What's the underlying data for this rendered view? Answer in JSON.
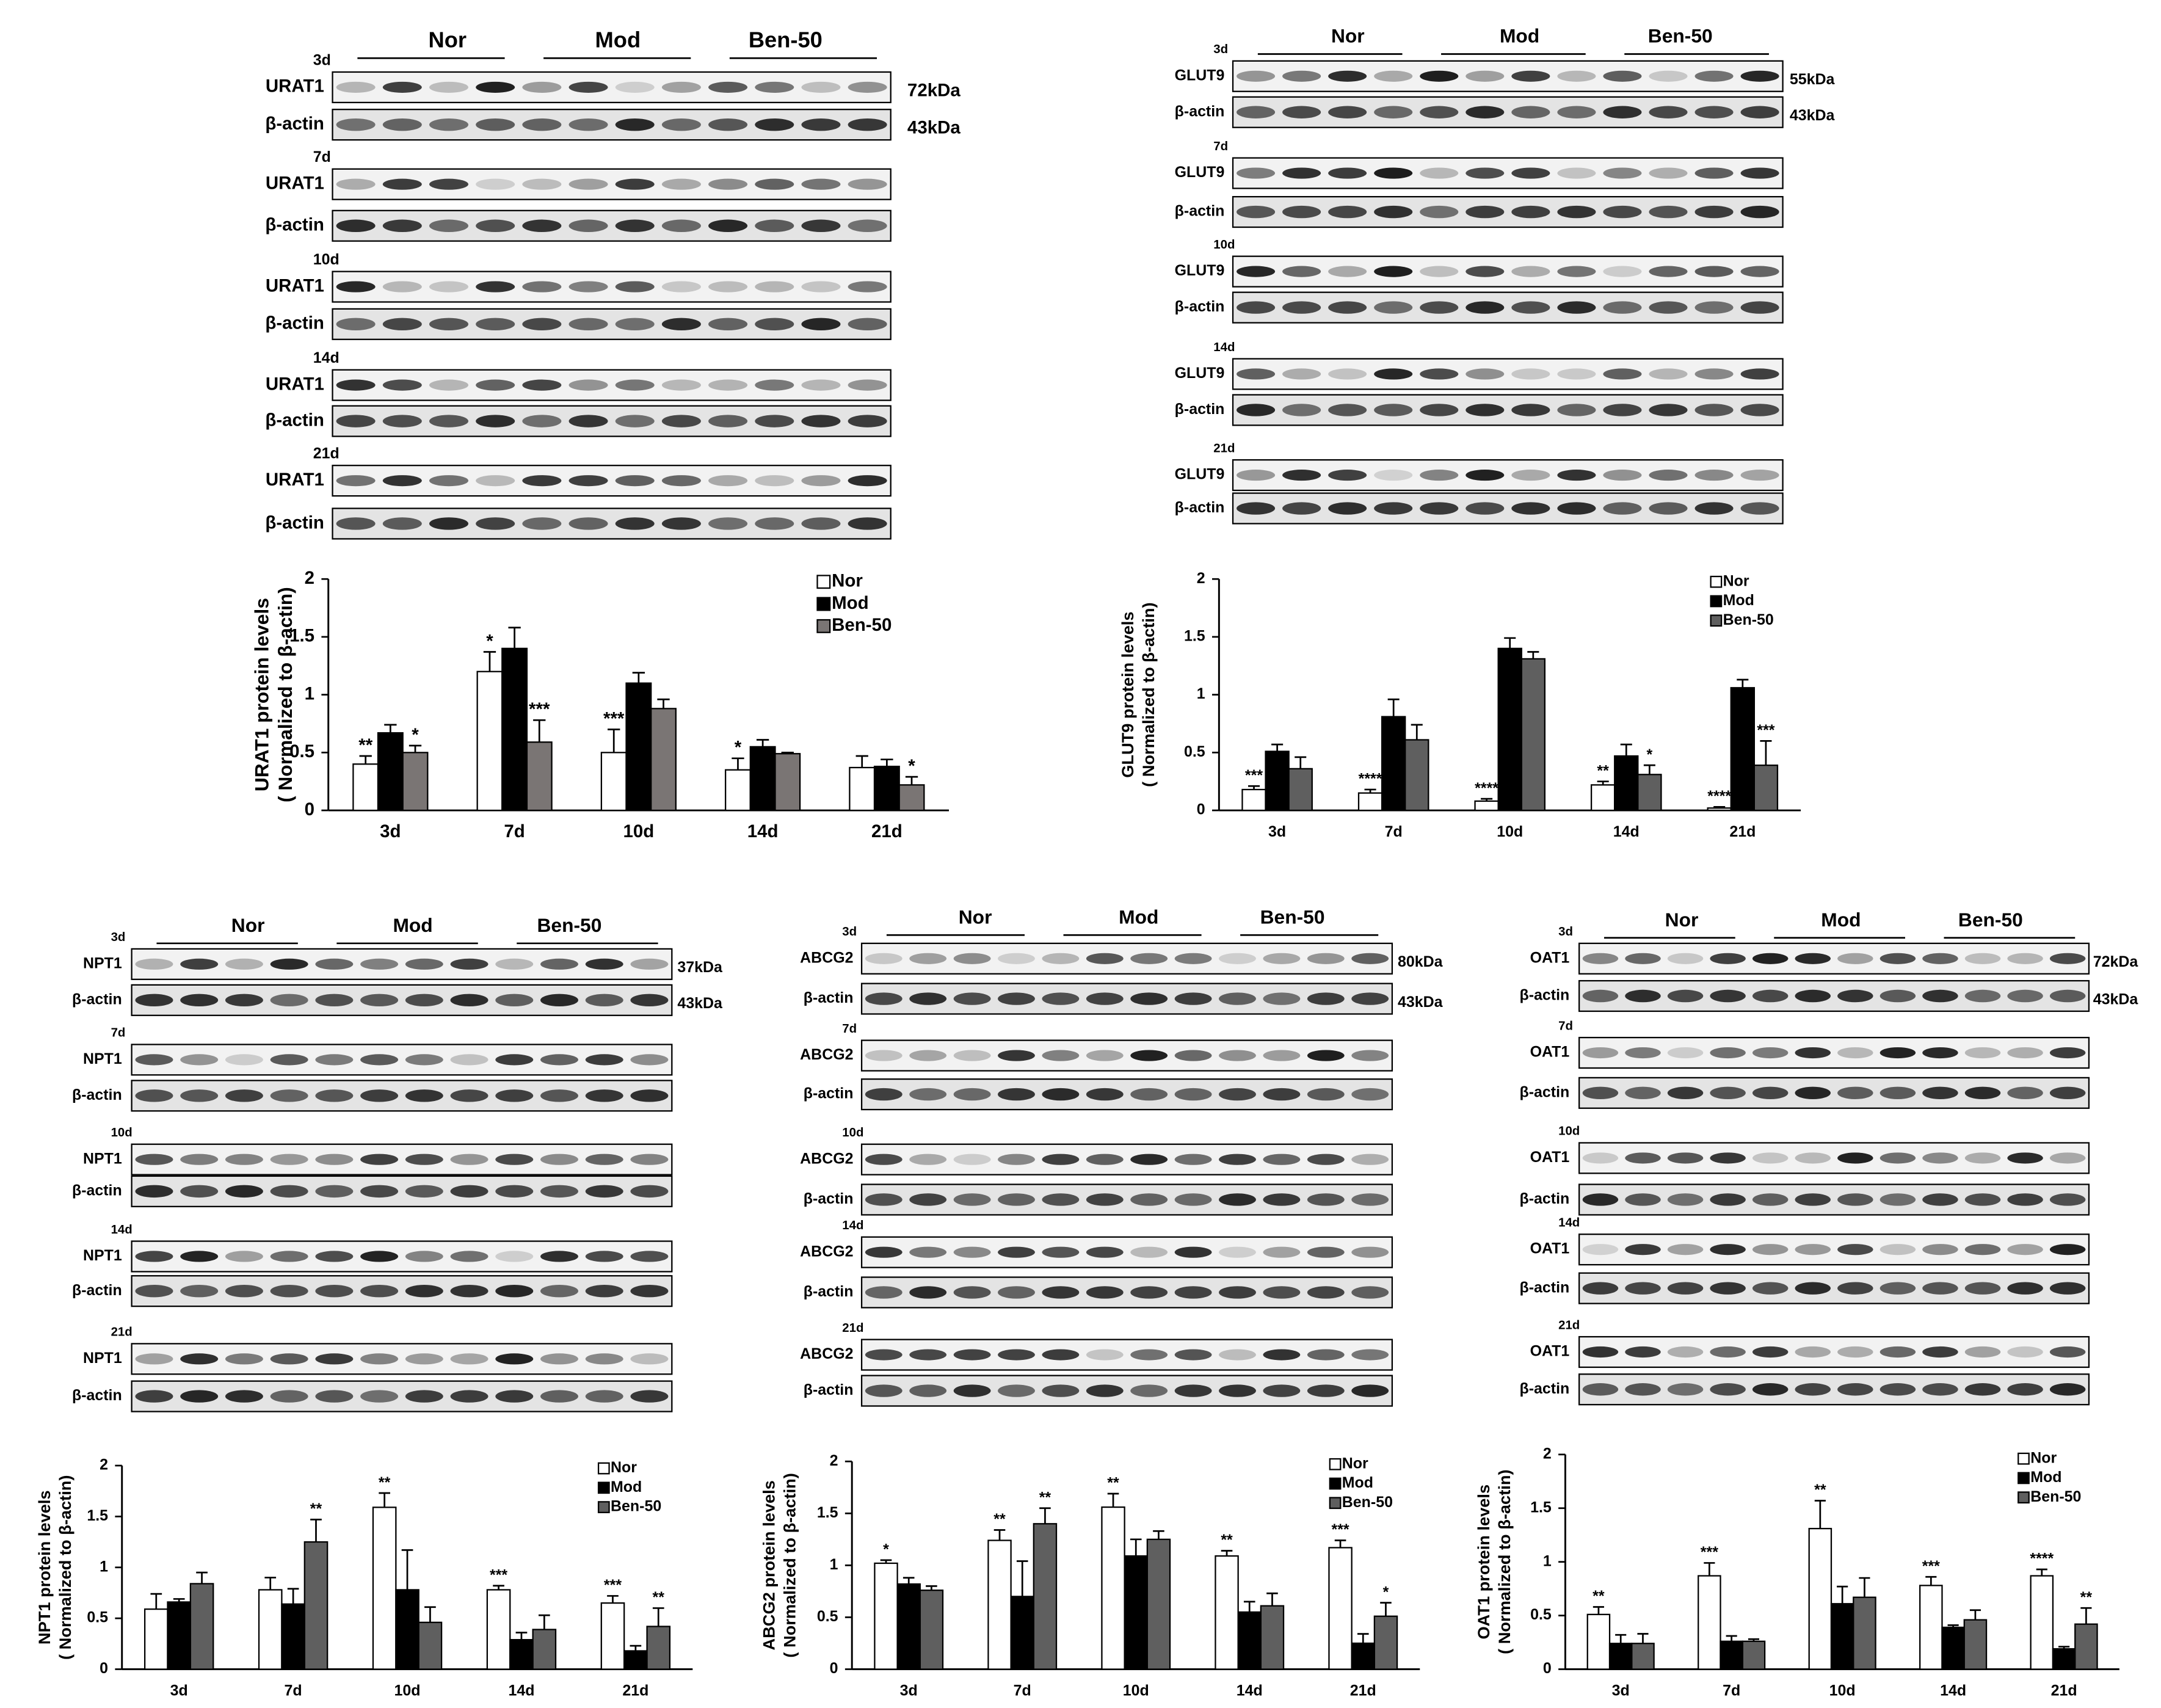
{
  "chart_data": [
    {
      "type": "bar",
      "ylabel": "URAT1 protein levels",
      "ylabel_note": "( Normalized to β-actin)",
      "categories": [
        "3d",
        "7d",
        "10d",
        "14d",
        "21d"
      ],
      "ylim": [
        0,
        2
      ],
      "yticks": [
        0,
        0.5,
        1,
        1.5,
        2
      ],
      "legend": "upper right",
      "series": [
        {
          "name": "Nor",
          "color": "#ffffff",
          "values": [
            0.4,
            1.2,
            0.5,
            0.35,
            0.37
          ],
          "errors": [
            0.07,
            0.17,
            0.2,
            0.1,
            0.1
          ],
          "significance": [
            "**",
            "*",
            "***",
            "*",
            null
          ]
        },
        {
          "name": "Mod",
          "color": "#000000",
          "values": [
            0.67,
            1.4,
            1.1,
            0.55,
            0.38
          ],
          "errors": [
            0.07,
            0.18,
            0.09,
            0.06,
            0.06
          ],
          "significance": [
            null,
            null,
            null,
            null,
            null
          ]
        },
        {
          "name": "Ben-50",
          "color": "#7a7574",
          "values": [
            0.5,
            0.59,
            0.88,
            0.49,
            0.22
          ],
          "errors": [
            0.06,
            0.19,
            0.08,
            0.01,
            0.07
          ],
          "significance": [
            "*",
            "***",
            null,
            null,
            "*"
          ]
        }
      ]
    },
    {
      "type": "bar",
      "ylabel": "GLUT9 protein levels",
      "ylabel_note": "( Normalized to β-actin)",
      "categories": [
        "3d",
        "7d",
        "10d",
        "14d",
        "21d"
      ],
      "ylim": [
        0,
        2
      ],
      "yticks": [
        0,
        0.5,
        1,
        1.5,
        2
      ],
      "legend": "upper right",
      "series": [
        {
          "name": "Nor",
          "color": "#ffffff",
          "values": [
            0.18,
            0.15,
            0.08,
            0.22,
            0.02
          ],
          "errors": [
            0.03,
            0.03,
            0.02,
            0.03,
            0.01
          ],
          "significance": [
            "***",
            "****",
            "****",
            "**",
            "****"
          ]
        },
        {
          "name": "Mod",
          "color": "#000000",
          "values": [
            0.51,
            0.81,
            1.4,
            0.47,
            1.06
          ],
          "errors": [
            0.06,
            0.15,
            0.09,
            0.1,
            0.07
          ],
          "significance": [
            null,
            null,
            null,
            null,
            null
          ]
        },
        {
          "name": "Ben-50",
          "color": "#5f5f5f",
          "values": [
            0.36,
            0.61,
            1.31,
            0.31,
            0.39
          ],
          "errors": [
            0.1,
            0.13,
            0.06,
            0.08,
            0.21
          ],
          "significance": [
            null,
            null,
            null,
            "*",
            "***"
          ]
        }
      ]
    },
    {
      "type": "bar",
      "ylabel": "NPT1 protein levels",
      "ylabel_note": "( Normalized to β-actin)",
      "categories": [
        "3d",
        "7d",
        "10d",
        "14d",
        "21d"
      ],
      "ylim": [
        0,
        2
      ],
      "yticks": [
        0,
        0.5,
        1,
        1.5,
        2
      ],
      "legend": "upper right",
      "series": [
        {
          "name": "Nor",
          "color": "#ffffff",
          "values": [
            0.59,
            0.78,
            1.59,
            0.78,
            0.65
          ],
          "errors": [
            0.15,
            0.12,
            0.14,
            0.04,
            0.07
          ],
          "significance": [
            null,
            null,
            "**",
            "***",
            "***"
          ]
        },
        {
          "name": "Mod",
          "color": "#000000",
          "values": [
            0.66,
            0.64,
            0.78,
            0.29,
            0.18
          ],
          "errors": [
            0.03,
            0.15,
            0.39,
            0.07,
            0.05
          ],
          "significance": [
            null,
            null,
            null,
            null,
            null
          ]
        },
        {
          "name": "Ben-50",
          "color": "#5f5f5f",
          "values": [
            0.84,
            1.25,
            0.46,
            0.39,
            0.42
          ],
          "errors": [
            0.11,
            0.22,
            0.15,
            0.14,
            0.18
          ],
          "significance": [
            null,
            "**",
            null,
            null,
            "**"
          ]
        }
      ]
    },
    {
      "type": "bar",
      "ylabel": "ABCG2 protein levels",
      "ylabel_note": "( Normalized to β-actin)",
      "categories": [
        "3d",
        "7d",
        "10d",
        "14d",
        "21d"
      ],
      "ylim": [
        0,
        2
      ],
      "yticks": [
        0,
        0.5,
        1,
        1.5,
        2
      ],
      "legend": "upper right",
      "series": [
        {
          "name": "Nor",
          "color": "#ffffff",
          "values": [
            1.02,
            1.24,
            1.56,
            1.09,
            1.17
          ],
          "errors": [
            0.03,
            0.1,
            0.13,
            0.05,
            0.07
          ],
          "significance": [
            "*",
            "**",
            "**",
            "**",
            "***"
          ]
        },
        {
          "name": "Mod",
          "color": "#000000",
          "values": [
            0.82,
            0.7,
            1.09,
            0.55,
            0.25
          ],
          "errors": [
            0.06,
            0.34,
            0.16,
            0.1,
            0.09
          ],
          "significance": [
            null,
            null,
            null,
            null,
            null
          ]
        },
        {
          "name": "Ben-50",
          "color": "#5f5f5f",
          "values": [
            0.76,
            1.4,
            1.25,
            0.61,
            0.51
          ],
          "errors": [
            0.04,
            0.15,
            0.08,
            0.12,
            0.13
          ],
          "significance": [
            null,
            "**",
            null,
            null,
            "*"
          ]
        }
      ]
    },
    {
      "type": "bar",
      "ylabel": "OAT1 protein levels",
      "ylabel_note": "( Normalized to β-actin)",
      "categories": [
        "3d",
        "7d",
        "10d",
        "14d",
        "21d"
      ],
      "ylim": [
        0,
        2
      ],
      "yticks": [
        0,
        0.5,
        1,
        1.5,
        2
      ],
      "legend": "upper right",
      "series": [
        {
          "name": "Nor",
          "color": "#ffffff",
          "values": [
            0.51,
            0.87,
            1.31,
            0.78,
            0.87
          ],
          "errors": [
            0.07,
            0.12,
            0.26,
            0.08,
            0.06
          ],
          "significance": [
            "**",
            "***",
            "**",
            "***",
            "****"
          ]
        },
        {
          "name": "Mod",
          "color": "#000000",
          "values": [
            0.24,
            0.26,
            0.61,
            0.39,
            0.19
          ],
          "errors": [
            0.08,
            0.05,
            0.16,
            0.02,
            0.02
          ],
          "significance": [
            null,
            null,
            null,
            null,
            null
          ]
        },
        {
          "name": "Ben-50",
          "color": "#5f5f5f",
          "values": [
            0.24,
            0.26,
            0.67,
            0.46,
            0.42
          ],
          "errors": [
            0.09,
            0.02,
            0.18,
            0.09,
            0.15
          ],
          "significance": [
            null,
            null,
            null,
            null,
            "**"
          ]
        }
      ]
    }
  ],
  "blots": [
    {
      "groups": [
        "Nor",
        "Mod",
        "Ben-50"
      ],
      "target": "URAT1",
      "control": "β-actin",
      "days": [
        "3d",
        "7d",
        "10d",
        "14d",
        "21d"
      ],
      "kda": [
        "72kDa",
        "43kDa"
      ]
    },
    {
      "groups": [
        "Nor",
        "Mod",
        "Ben-50"
      ],
      "target": "GLUT9",
      "control": "β-actin",
      "days": [
        "3d",
        "7d",
        "10d",
        "14d",
        "21d"
      ],
      "kda": [
        "55kDa",
        "43kDa"
      ]
    },
    {
      "groups": [
        "Nor",
        "Mod",
        "Ben-50"
      ],
      "target": "NPT1",
      "control": "β-actin",
      "days": [
        "3d",
        "7d",
        "10d",
        "14d",
        "21d"
      ],
      "kda": [
        "37kDa",
        "43kDa"
      ]
    },
    {
      "groups": [
        "Nor",
        "Mod",
        "Ben-50"
      ],
      "target": "ABCG2",
      "control": "β-actin",
      "days": [
        "3d",
        "7d",
        "10d",
        "14d",
        "21d"
      ],
      "kda": [
        "80kDa",
        "43kDa"
      ]
    },
    {
      "groups": [
        "Nor",
        "Mod",
        "Ben-50"
      ],
      "target": "OAT1",
      "control": "β-actin",
      "days": [
        "3d",
        "7d",
        "10d",
        "14d",
        "21d"
      ],
      "kda": [
        "72kDa",
        "43kDa"
      ]
    }
  ]
}
